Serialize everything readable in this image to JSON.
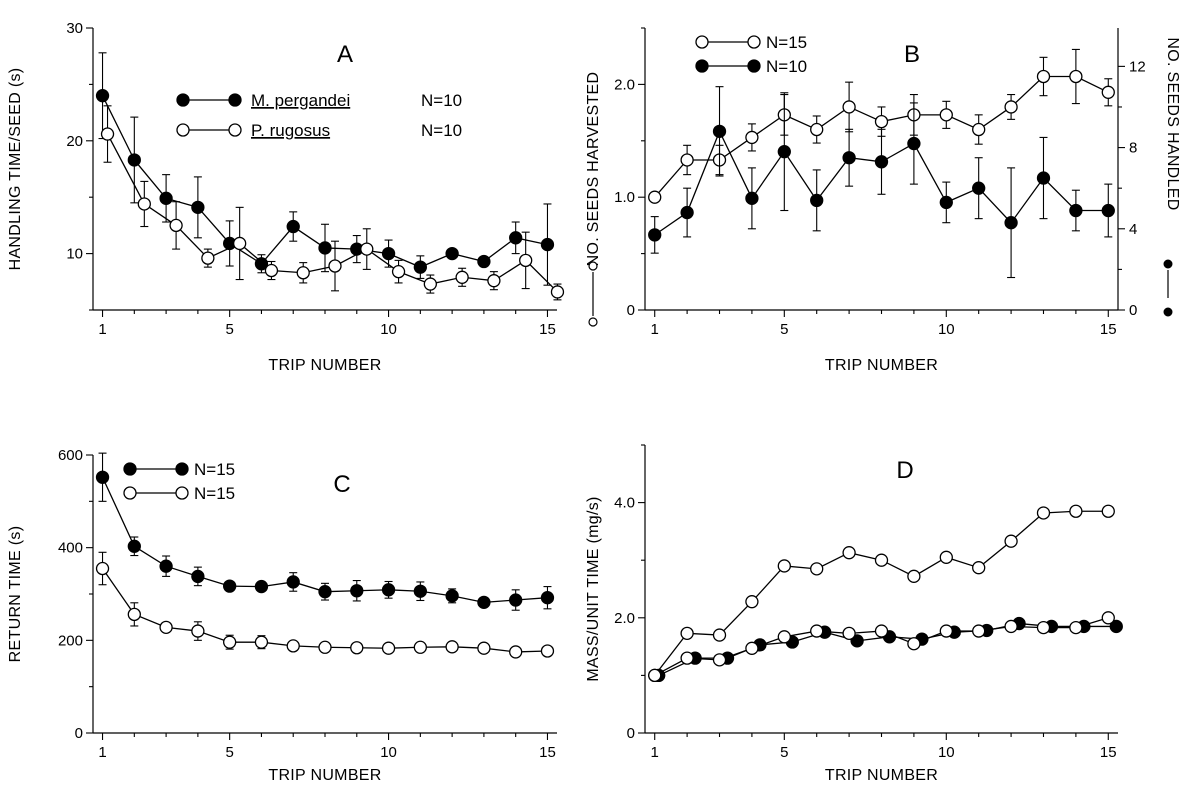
{
  "chart_data": [
    {
      "id": "A",
      "type": "line",
      "panel_label": "A",
      "xlabel": "TRIP NUMBER",
      "ylabel": "HANDLING TIME/SEED (s)",
      "xlim": [
        0.7,
        15.3
      ],
      "ylim": [
        5,
        30
      ],
      "xticks": [
        1,
        5,
        10,
        15
      ],
      "yticks": [
        10,
        20,
        30
      ],
      "legend_position": "top-center",
      "x": [
        1,
        2,
        3,
        4,
        5,
        6,
        7,
        8,
        9,
        10,
        11,
        12,
        13,
        14,
        15
      ],
      "series": [
        {
          "name": "M. pergandei",
          "legend_n": "N=10",
          "marker": "filled",
          "values": [
            24.0,
            18.3,
            14.9,
            14.1,
            10.9,
            9.1,
            12.4,
            10.5,
            10.4,
            10.0,
            8.8,
            10.0,
            9.3,
            11.4,
            10.8
          ],
          "err": [
            3.8,
            3.8,
            2.1,
            2.7,
            2.0,
            0.8,
            1.3,
            2.1,
            1.2,
            1.2,
            1.0,
            0.0,
            0.0,
            1.4,
            3.6
          ]
        },
        {
          "name": "P. rugosus",
          "legend_n": "N=10",
          "marker": "open",
          "values": [
            20.6,
            14.4,
            12.5,
            9.6,
            10.9,
            8.5,
            8.3,
            8.9,
            10.4,
            8.4,
            7.3,
            7.9,
            7.6,
            9.4,
            6.6
          ],
          "err": [
            2.5,
            2.0,
            2.1,
            0.8,
            3.2,
            0.8,
            0.9,
            2.2,
            1.8,
            1.0,
            0.8,
            0.8,
            0.8,
            2.5,
            0.7
          ]
        }
      ]
    },
    {
      "id": "B",
      "type": "line",
      "panel_label": "B",
      "xlabel": "TRIP NUMBER",
      "ylabel": "NO. SEEDS HARVESTED",
      "ylabel_right": "NO. SEEDS HANDLED",
      "xlim": [
        0.7,
        15.3
      ],
      "ylim": [
        0,
        2.5
      ],
      "ylim_right": [
        0,
        13.89
      ],
      "xticks": [
        1,
        5,
        10,
        15
      ],
      "yticks": [
        "0",
        "1.0",
        "2.0"
      ],
      "yticks_right": [
        "0",
        "4",
        "8",
        "12"
      ],
      "legend_position": "top-left",
      "x": [
        1,
        2,
        3,
        4,
        5,
        6,
        7,
        8,
        9,
        10,
        11,
        12,
        13,
        14,
        15
      ],
      "series": [
        {
          "name": "",
          "legend_n": "N=15",
          "marker": "open",
          "axis": "left",
          "values": [
            1.0,
            1.33,
            1.33,
            1.53,
            1.73,
            1.6,
            1.8,
            1.67,
            1.73,
            1.73,
            1.6,
            1.8,
            2.07,
            2.07,
            1.93
          ],
          "err": [
            0.0,
            0.13,
            0.13,
            0.12,
            0.18,
            0.12,
            0.22,
            0.13,
            0.18,
            0.12,
            0.13,
            0.11,
            0.17,
            0.24,
            0.12
          ]
        },
        {
          "name": "",
          "legend_n": "N=10",
          "marker": "filled",
          "axis": "right",
          "values": [
            3.7,
            4.8,
            8.8,
            5.5,
            7.8,
            5.4,
            7.5,
            7.3,
            8.2,
            5.3,
            6.0,
            4.3,
            6.5,
            4.9,
            4.9
          ],
          "err": [
            0.9,
            1.2,
            2.2,
            1.5,
            2.9,
            1.5,
            1.4,
            1.6,
            2.0,
            1.0,
            1.5,
            2.7,
            2.0,
            1.0,
            1.3
          ]
        }
      ]
    },
    {
      "id": "C",
      "type": "line",
      "panel_label": "C",
      "xlabel": "TRIP NUMBER",
      "ylabel": "RETURN TIME (s)",
      "xlim": [
        0.7,
        15.3
      ],
      "ylim": [
        0,
        600
      ],
      "xticks": [
        1,
        5,
        10,
        15
      ],
      "yticks": [
        0,
        200,
        400,
        600
      ],
      "legend_position": "top-left",
      "x": [
        1,
        2,
        3,
        4,
        5,
        6,
        7,
        8,
        9,
        10,
        11,
        12,
        13,
        14,
        15
      ],
      "series": [
        {
          "name": "",
          "legend_n": "N=15",
          "marker": "filled",
          "values": [
            552,
            403,
            360,
            338,
            317,
            316,
            326,
            305,
            307,
            309,
            306,
            296,
            282,
            287,
            292
          ],
          "err": [
            52,
            20,
            22,
            20,
            8,
            10,
            20,
            18,
            22,
            18,
            20,
            15,
            10,
            22,
            24
          ]
        },
        {
          "name": "",
          "legend_n": "N=15",
          "marker": "open",
          "values": [
            355,
            256,
            228,
            220,
            196,
            196,
            188,
            185,
            184,
            183,
            185,
            186,
            183,
            175,
            177
          ],
          "err": [
            35,
            25,
            8,
            20,
            15,
            14,
            8,
            5,
            5,
            5,
            5,
            5,
            5,
            5,
            5
          ]
        }
      ]
    },
    {
      "id": "D",
      "type": "line",
      "panel_label": "D",
      "xlabel": "TRIP NUMBER",
      "ylabel": "MASS/UNIT TIME (mg/s)",
      "xlim": [
        0.7,
        15.3
      ],
      "ylim": [
        0,
        5
      ],
      "xticks": [
        1,
        5,
        10,
        15
      ],
      "yticks": [
        "0",
        "2.0",
        "4.0"
      ],
      "x": [
        1,
        2,
        3,
        4,
        5,
        6,
        7,
        8,
        9,
        10,
        11,
        12,
        13,
        14,
        15
      ],
      "series": [
        {
          "name": "",
          "marker": "open",
          "values": [
            1.0,
            1.73,
            1.7,
            2.28,
            2.9,
            2.85,
            3.13,
            3.0,
            2.72,
            3.05,
            2.87,
            3.33,
            3.82,
            3.85,
            3.85
          ]
        },
        {
          "name": "",
          "marker": "filled",
          "values": [
            1.0,
            1.3,
            1.3,
            1.53,
            1.58,
            1.75,
            1.6,
            1.67,
            1.63,
            1.75,
            1.78,
            1.9,
            1.85,
            1.85,
            1.85
          ]
        },
        {
          "name": "",
          "marker": "open",
          "values": [
            1.0,
            1.3,
            1.27,
            1.47,
            1.67,
            1.77,
            1.73,
            1.77,
            1.55,
            1.77,
            1.77,
            1.85,
            1.83,
            1.83,
            2.0
          ]
        }
      ]
    }
  ]
}
